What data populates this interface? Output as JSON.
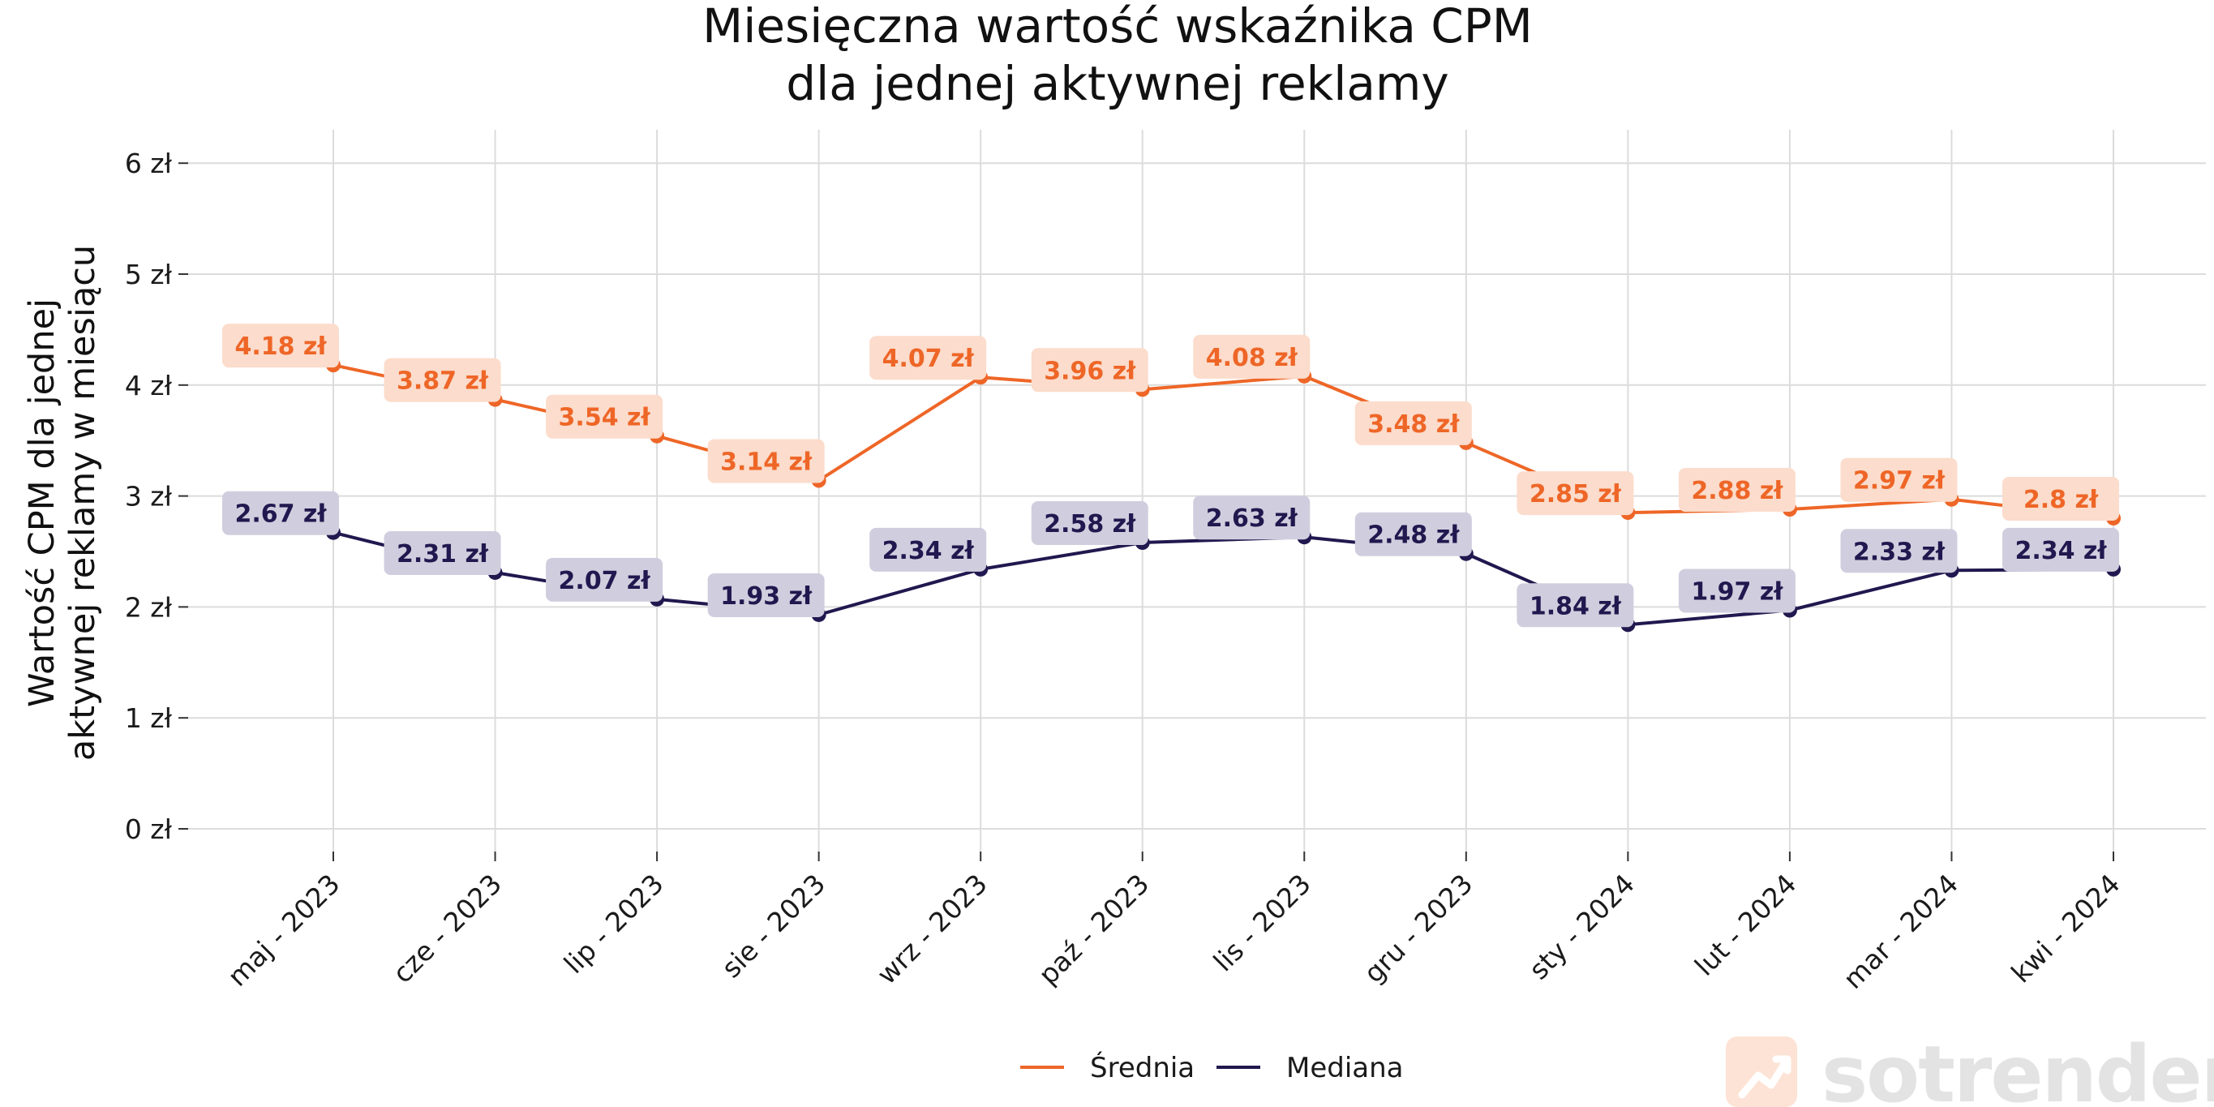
{
  "chart_data": {
    "type": "line",
    "title_lines": [
      "Miesięczna wartość wskaźnika CPM",
      "dla jednej aktywnej reklamy"
    ],
    "xlabel": "",
    "ylabel_lines": [
      "Wartość CPM dla jednej",
      "aktywnej reklamy w miesiącu"
    ],
    "categories": [
      "maj - 2023",
      "cze - 2023",
      "lip - 2023",
      "sie - 2023",
      "wrz - 2023",
      "paź - 2023",
      "lis - 2023",
      "gru - 2023",
      "sty - 2024",
      "lut - 2024",
      "mar - 2024",
      "kwi - 2024"
    ],
    "ylim": [
      -0.3,
      6.3
    ],
    "yticks": [
      0,
      1,
      2,
      3,
      4,
      5,
      6
    ],
    "ytick_labels": [
      "0 zł",
      "1 zł",
      "2 zł",
      "3 zł",
      "4 zł",
      "5 zł",
      "6 zł"
    ],
    "grid": true,
    "legend_position": "bottom-center",
    "series": [
      {
        "name": "Średnia",
        "color": "#ee6627",
        "label_bg": "#fcdccc",
        "values": [
          4.18,
          3.87,
          3.54,
          3.14,
          4.07,
          3.96,
          4.08,
          3.48,
          2.85,
          2.88,
          2.97,
          2.8
        ],
        "labels": [
          "4.18 zł",
          "3.87 zł",
          "3.54 zł",
          "3.14 zł",
          "4.07 zł",
          "3.96 zł",
          "4.08 zł",
          "3.48 zł",
          "2.85 zł",
          "2.88 zł",
          "2.97 zł",
          "2.8 zł"
        ]
      },
      {
        "name": "Mediana",
        "color": "#21184f",
        "label_bg": "#d0cede",
        "values": [
          2.67,
          2.31,
          2.07,
          1.93,
          2.34,
          2.58,
          2.63,
          2.48,
          1.84,
          1.97,
          2.33,
          2.34
        ],
        "labels": [
          "2.67 zł",
          "2.31 zł",
          "2.07 zł",
          "1.93 zł",
          "2.34 zł",
          "2.58 zł",
          "2.63 zł",
          "2.48 zł",
          "1.84 zł",
          "1.97 zł",
          "2.33 zł",
          "2.34 zł"
        ]
      }
    ]
  },
  "watermark": {
    "text": "sotrender",
    "icon": "trend-arrow-icon"
  }
}
